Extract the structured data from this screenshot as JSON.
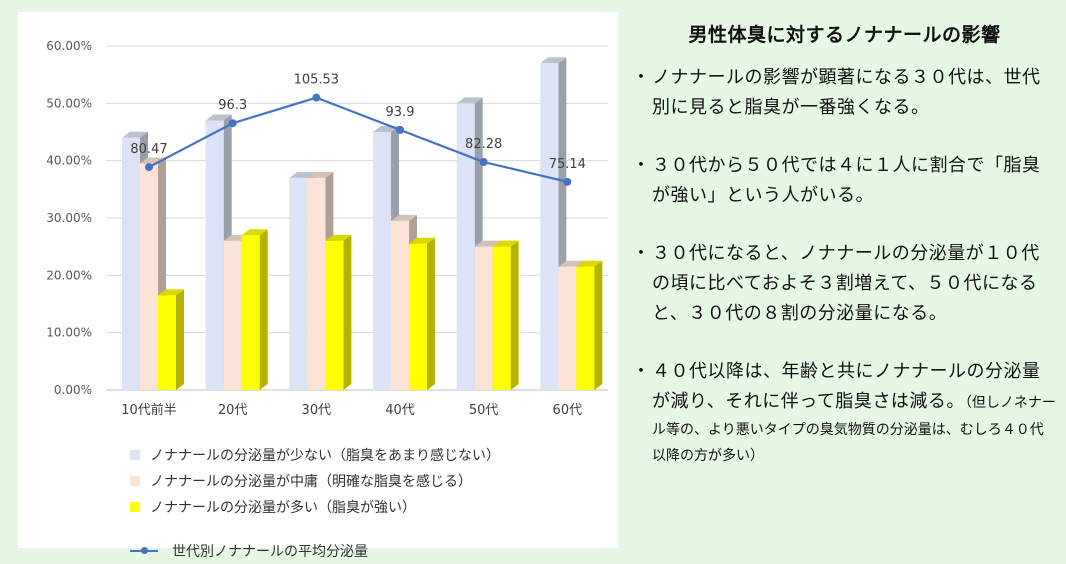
{
  "chart_data": {
    "type": "bar+line",
    "categories": [
      "10代前半",
      "20代",
      "30代",
      "40代",
      "50代",
      "60代"
    ],
    "ylim": [
      0,
      60
    ],
    "yticks": [
      "0.00%",
      "10.00%",
      "20.00%",
      "30.00%",
      "40.00%",
      "50.00%",
      "60.00%"
    ],
    "series": [
      {
        "name": "ノナナールの分泌量が少ない（脂臭をあまり感じない）",
        "kind": "bar",
        "color": "#dbe3f4",
        "values": [
          44,
          47,
          37,
          45,
          50,
          57
        ]
      },
      {
        "name": "ノナナールの分泌量が中庸（明確な脂臭を感じる）",
        "kind": "bar",
        "color": "#fbe3d6",
        "values": [
          39.5,
          26,
          37,
          29.5,
          25,
          21.5
        ]
      },
      {
        "name": "ノナナールの分泌量が多い（脂臭が強い）",
        "kind": "bar",
        "color": "#ffff00",
        "values": [
          16.5,
          27,
          26,
          25.5,
          25,
          21.5
        ]
      }
    ],
    "line": {
      "name": "世代別ノナナールの平均分泌量",
      "color": "#4472c4",
      "values": [
        80.47,
        96.3,
        105.53,
        93.9,
        82.28,
        75.14
      ],
      "labels": [
        "80.47",
        "96.3",
        "105.53",
        "93.9",
        "82.28",
        "75.14"
      ],
      "range": [
        0,
        135
      ]
    }
  },
  "panel": {
    "title": "男性体臭に対するノナナールの影響",
    "bullet_mark": "・",
    "bullets": [
      {
        "text": "ノナナールの影響が顕著になる３０代は、世代別に見ると脂臭が一番強くなる。",
        "note": ""
      },
      {
        "text": "３０代から５０代では４に１人に割合で「脂臭が強い」という人がいる。",
        "note": ""
      },
      {
        "text": "３０代になると、ノナナールの分泌量が１０代の頃に比べておよそ３割増えて、５０代になると、３０代の８割の分泌量になる。",
        "note": ""
      },
      {
        "text": "４０代以降は、年齢と共にノナナールの分泌量が減り、それに伴って脂臭さは減る。",
        "note": "（但しノネナール等の、より悪いタイプの臭気物質の分泌量は、むしろ４０代以降の方が多い）"
      }
    ]
  }
}
